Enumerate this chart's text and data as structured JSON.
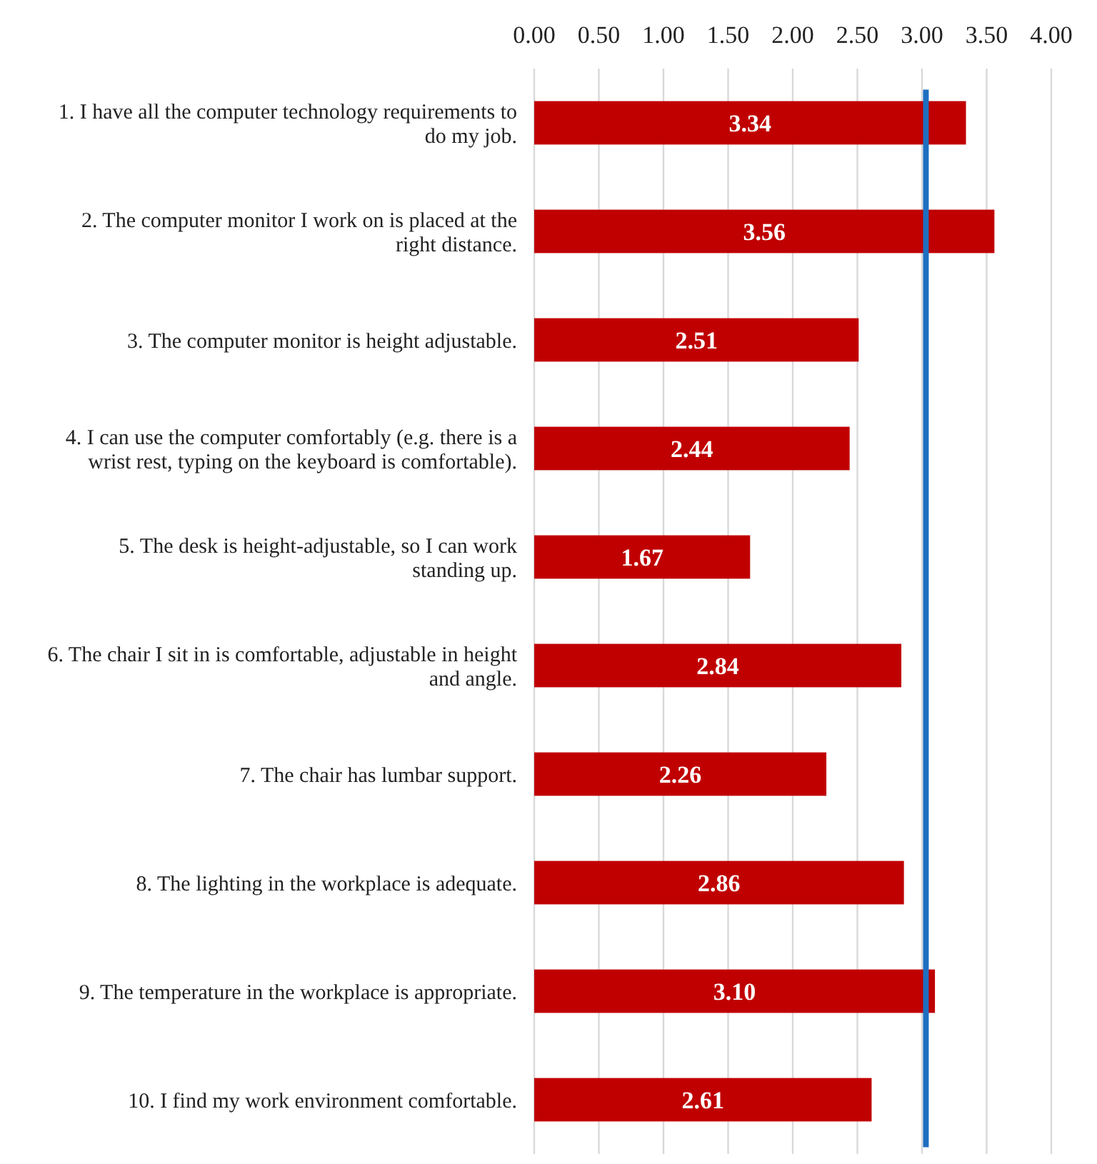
{
  "chart_data": {
    "type": "bar",
    "orientation": "horizontal",
    "categories": [
      "1. I have all the computer technology requirements to do my job.",
      "2. The computer monitor I work on is placed at the right distance.",
      "3. The computer monitor is height adjustable.",
      "4. I can use the computer comfortably (e.g. there is a wrist rest, typing on the keyboard is comfortable).",
      "5. The desk is height-adjustable, so I can work standing up.",
      "6. The chair I sit in is comfortable, adjustable in height and angle.",
      "7. The chair has lumbar support.",
      "8. The lighting in the workplace is adequate.",
      "9. The temperature in the workplace is appropriate.",
      "10. I find my work environment comfortable."
    ],
    "values": [
      3.34,
      3.56,
      2.51,
      2.44,
      1.67,
      2.84,
      2.26,
      2.86,
      3.1,
      2.61
    ],
    "value_labels": [
      "3.34",
      "3.56",
      "2.51",
      "2.44",
      "1.67",
      "2.84",
      "2.26",
      "2.86",
      "3.10",
      "2.61"
    ],
    "color": "#c00000",
    "xlim": [
      0,
      4
    ],
    "xticks": [
      {
        "value": 0,
        "label": "0.00"
      },
      {
        "value": 0.5,
        "label": "0.50"
      },
      {
        "value": 1,
        "label": "1.00"
      },
      {
        "value": 1.5,
        "label": "1.50"
      },
      {
        "value": 2,
        "label": "2.00"
      },
      {
        "value": 2.5,
        "label": "2.50"
      },
      {
        "value": 3,
        "label": "3.00"
      },
      {
        "value": 3.5,
        "label": "3.50"
      },
      {
        "value": 4,
        "label": "4.00"
      }
    ],
    "grid": "x",
    "ref_lines": [
      {
        "axis": "x",
        "value": 3.03,
        "color": "#1f6fc0"
      }
    ]
  }
}
